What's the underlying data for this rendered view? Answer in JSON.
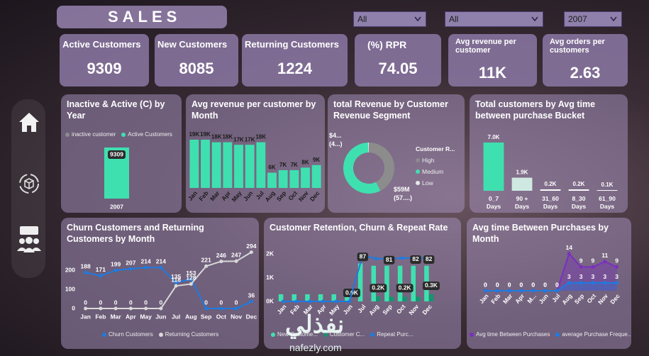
{
  "header": {
    "title": "SALES"
  },
  "filters": [
    "All",
    "All",
    "2007"
  ],
  "kpis": [
    {
      "label": "Active Customers",
      "value": 9309
    },
    {
      "label": "New Customers",
      "value": 8085
    },
    {
      "label": "Returning Customers",
      "value": 1224
    },
    {
      "label": "(%)  RPR",
      "value": 74.05
    },
    {
      "label": "Avg revenue per customer",
      "value": 11000,
      "value_label": "11K"
    },
    {
      "label": "Avg orders per customers",
      "value": 2.63
    }
  ],
  "watermark": {
    "arabic": "نفذلي",
    "site": "nafezly.com"
  },
  "chart_data": [
    {
      "type": "bar",
      "stacked": true,
      "data_labels": true,
      "title": "Inactive & Active (C) by Year",
      "categories": [
        "2007"
      ],
      "series": [
        {
          "name": "inactive customer",
          "color": "#8c8c8c",
          "values": [
            0
          ]
        },
        {
          "name": "Active Customers",
          "color": "#3fe0b0",
          "values": [
            9309
          ]
        }
      ]
    },
    {
      "type": "bar",
      "title": "Avg revenue per customer by Month",
      "categories": [
        "Jan",
        "Feb",
        "Mar",
        "Apr",
        "May",
        "Jun",
        "Jul",
        "Aug",
        "Sep",
        "Oct",
        "Nov",
        "Dec"
      ],
      "values": [
        19000,
        19000,
        18000,
        18000,
        17000,
        17000,
        18000,
        6000,
        7000,
        7000,
        8000,
        9000
      ],
      "value_labels": [
        "19K",
        "19K",
        "18K",
        "18K",
        "17K",
        "17K",
        "18K",
        "6K",
        "7K",
        "7K",
        "8K",
        "9K"
      ],
      "color": "#3fe0b0"
    },
    {
      "type": "donut",
      "title": "total Revenue by Customer Revenue Segment",
      "legend_title": "Customer R...",
      "categories": [
        "High",
        "Medium",
        "Low"
      ],
      "values": [
        44,
        59,
        0.5
      ],
      "value_labels": [
        "$4... (4...)",
        "$59M (57....)",
        null
      ],
      "colors": [
        "#8c8c8c",
        "#3fe0b0",
        "#e8e8e8"
      ]
    },
    {
      "type": "bar",
      "title": "Total customers by Avg time between purchase Bucket",
      "categories": [
        "0_7 Days",
        "90 + Days",
        "31_60 Days",
        "8_30 Days",
        "61_90 Days"
      ],
      "values": [
        7000,
        1900,
        200,
        200,
        100
      ],
      "value_labels": [
        "7.0K",
        "1.9K",
        "0.2K",
        "0.2K",
        "0.1K"
      ],
      "colors": [
        "#3fe0b0",
        "#cfe9e2",
        "#ffffff",
        "#ffffff",
        "#ffffff"
      ]
    },
    {
      "type": "line",
      "data_labels": true,
      "title": "Churn Customers and Returning Customers by Month",
      "categories": [
        "Jan",
        "Feb",
        "Mar",
        "Apr",
        "May",
        "Jun",
        "Jul",
        "Aug",
        "Sep",
        "Oct",
        "Nov",
        "Dec"
      ],
      "ylim": [
        0,
        300
      ],
      "yticks": [
        0,
        100,
        200
      ],
      "series": [
        {
          "name": "Churn Customers",
          "color": "#1e7be0",
          "values": [
            188,
            171,
            199,
            207,
            214,
            214,
            135,
            153,
            0,
            0,
            0,
            36
          ]
        },
        {
          "name": "Returning Customers",
          "color": "#d9d9d9",
          "values": [
            0,
            0,
            0,
            0,
            0,
            0,
            118,
            128,
            221,
            246,
            247,
            294
          ]
        }
      ]
    },
    {
      "type": "combo",
      "title": "Customer Retention, Churn & Repeat Rate",
      "categories": [
        "Jan",
        "Feb",
        "Mar",
        "Apr",
        "May",
        "Jun",
        "Jul",
        "Aug",
        "Sep",
        "Oct",
        "Nov",
        "Dec"
      ],
      "ylim": [
        0,
        2000
      ],
      "yticks": [
        {
          "value": 0,
          "label": "0K"
        },
        {
          "value": 1000,
          "label": "1K"
        },
        {
          "value": 2000,
          "label": "2K"
        }
      ],
      "y2lim": [
        0,
        90
      ],
      "series": [
        {
          "name": "New Custome...",
          "type": "bar",
          "color": "#3fe0b0",
          "values": [
            300,
            300,
            300,
            300,
            300,
            300,
            1600,
            1500,
            1500,
            1500,
            1500,
            1500
          ]
        },
        {
          "name": "Customer C...",
          "type": "bar",
          "color": "#17946f",
          "values": [
            0,
            0,
            0,
            0,
            0,
            0,
            0,
            200,
            200,
            200,
            200,
            300
          ],
          "value_labels": [
            null,
            null,
            null,
            null,
            null,
            "0.0K",
            null,
            "0.2K",
            null,
            "0.2K",
            null,
            "0.3K"
          ]
        },
        {
          "name": "Repeat Purc...",
          "type": "line",
          "axis": "y2",
          "color": "#1e7be0",
          "values": [
            0,
            0,
            0,
            0,
            0,
            0,
            87,
            81,
            81,
            82,
            82,
            82
          ],
          "value_labels": [
            null,
            null,
            null,
            null,
            null,
            null,
            "87",
            null,
            "81",
            null,
            "82",
            "82"
          ]
        }
      ]
    },
    {
      "type": "line",
      "area": true,
      "data_labels": true,
      "title": "Avg time Between Purchases by Month",
      "categories": [
        "Jan",
        "Feb",
        "Mar",
        "Apr",
        "M...",
        "Jun",
        "Jul",
        "Aug",
        "Sep",
        "Oct",
        "Nov",
        "Dec"
      ],
      "ylim": [
        0,
        15
      ],
      "series": [
        {
          "name": "Avg time Between Purchases",
          "color": "#7b2fbf",
          "values": [
            0,
            0,
            0,
            0,
            0,
            0,
            0,
            14,
            9,
            9,
            11,
            9
          ]
        },
        {
          "name": "average Purchase Freque...",
          "color": "#1e7be0",
          "values": [
            0,
            0,
            0,
            0,
            0,
            0,
            0,
            3,
            3,
            3,
            3,
            3
          ]
        }
      ]
    }
  ]
}
